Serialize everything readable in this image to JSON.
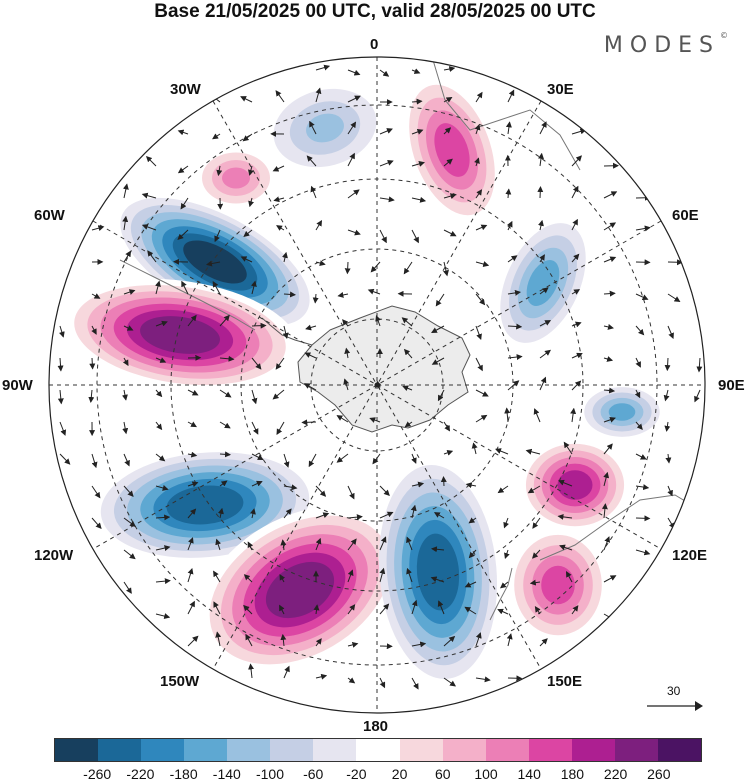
{
  "header": {
    "title": "Base 21/05/2025 00 UTC, valid 28/05/2025 00 UTC"
  },
  "brand": {
    "logo": "MODES",
    "mark": "©"
  },
  "map": {
    "projection": "south-polar-stereographic",
    "longitude_labels": {
      "top": "0",
      "top_right": "30E",
      "right_upper": "60E",
      "right": "90E",
      "right_lower": "120E",
      "bottom_right": "150E",
      "bottom": "180",
      "bottom_left": "150W",
      "left_lower": "120W",
      "left": "90W",
      "left_upper": "60W",
      "top_left": "30W"
    },
    "vector_scale": {
      "label": "30",
      "icon": "arrow-right-icon"
    },
    "field_centers": [
      {
        "name": "upper-north",
        "value": -100
      },
      {
        "name": "upper-ne-ridge",
        "value": 180
      },
      {
        "name": "nw-pink",
        "value": 120
      },
      {
        "name": "nw-trough",
        "value": -260
      },
      {
        "name": "west-ridge",
        "value": 260
      },
      {
        "name": "sw-trough",
        "value": -250
      },
      {
        "name": "south-ridge",
        "value": 260
      },
      {
        "name": "south-trough",
        "value": -240
      },
      {
        "name": "east-trough",
        "value": -160
      },
      {
        "name": "east-small",
        "value": -140
      },
      {
        "name": "se-ridge",
        "value": 190
      },
      {
        "name": "se-ridge-2",
        "value": 160
      }
    ]
  },
  "colorbar": {
    "ticks": [
      "-260",
      "-220",
      "-180",
      "-140",
      "-100",
      "-60",
      "-20",
      "20",
      "60",
      "100",
      "140",
      "180",
      "220",
      "260"
    ],
    "colors": [
      "#173f5e",
      "#1b6898",
      "#2f87bd",
      "#5ea8d2",
      "#9ac1e0",
      "#c5cfe5",
      "#e6e5f0",
      "#ffffff",
      "#f7d8dd",
      "#f4b0c9",
      "#ec7fb6",
      "#dc45a3",
      "#ad1f91",
      "#7d1f7e",
      "#4b1363"
    ]
  }
}
